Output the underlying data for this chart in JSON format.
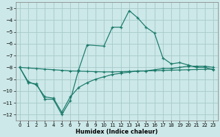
{
  "xlabel": "Humidex (Indice chaleur)",
  "bg_color": "#cce8e8",
  "grid_color": "#aacccc",
  "line_color": "#1a7a6a",
  "xlim": [
    -0.5,
    23.5
  ],
  "ylim": [
    -12.5,
    -2.5
  ],
  "yticks": [
    -12,
    -11,
    -10,
    -9,
    -8,
    -7,
    -6,
    -5,
    -4,
    -3
  ],
  "xticks": [
    0,
    1,
    2,
    3,
    4,
    5,
    6,
    7,
    8,
    9,
    10,
    11,
    12,
    13,
    14,
    15,
    16,
    17,
    18,
    19,
    20,
    21,
    22,
    23
  ],
  "s1_x": [
    0,
    1,
    2,
    3,
    4,
    5,
    6,
    7,
    8,
    10,
    11,
    12,
    13,
    14,
    15,
    16,
    17,
    18,
    19,
    20,
    21,
    22,
    23
  ],
  "s1_y": [
    -8.0,
    -9.3,
    -9.4,
    -10.7,
    -10.7,
    -12.0,
    -10.8,
    -8.2,
    -6.1,
    -6.2,
    -4.6,
    -4.6,
    -3.2,
    -3.8,
    -4.6,
    -5.1,
    -7.2,
    -7.7,
    -7.6,
    -7.8,
    -8.0,
    -8.0,
    -8.2
  ],
  "s2_x": [
    0,
    1,
    2,
    3,
    4,
    5,
    6,
    7,
    8,
    9,
    10,
    11,
    12,
    13,
    14,
    15,
    16,
    17,
    18,
    19,
    20,
    21,
    22,
    23
  ],
  "s2_y": [
    -8.0,
    -9.2,
    -9.5,
    -10.5,
    -10.6,
    -11.8,
    -10.5,
    -9.7,
    -9.3,
    -9.0,
    -8.8,
    -8.6,
    -8.5,
    -8.4,
    -8.3,
    -8.3,
    -8.2,
    -8.1,
    -8.1,
    -8.0,
    -7.9,
    -7.9,
    -7.9,
    -8.0
  ],
  "s3_x": [
    0,
    1,
    2,
    3,
    4,
    5,
    6,
    7,
    8,
    9,
    10,
    11,
    12,
    13,
    14,
    15,
    16,
    17,
    18,
    19,
    20,
    21,
    22,
    23
  ],
  "s3_y": [
    -8.0,
    -8.05,
    -8.1,
    -8.15,
    -8.2,
    -8.25,
    -8.3,
    -8.32,
    -8.34,
    -8.36,
    -8.38,
    -8.38,
    -8.36,
    -8.34,
    -8.32,
    -8.3,
    -8.28,
    -8.26,
    -8.24,
    -8.22,
    -8.2,
    -8.18,
    -8.16,
    -8.15
  ]
}
